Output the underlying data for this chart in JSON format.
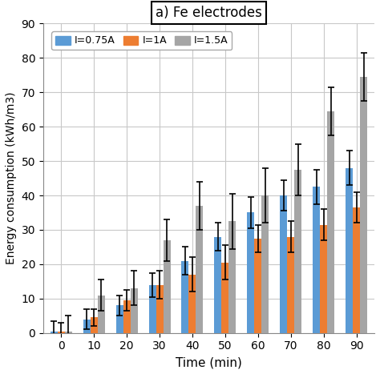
{
  "title": "a) Fe electrodes",
  "xlabel": "Time (min)",
  "ylabel": "Energy consumption (kWh/m3)",
  "x_tick_labels": [
    "0",
    "10",
    "20",
    "30",
    "40",
    "50",
    "60",
    "70",
    "80",
    "90"
  ],
  "ylim": [
    0,
    90
  ],
  "yticks": [
    0,
    10,
    20,
    30,
    40,
    50,
    60,
    70,
    80,
    90
  ],
  "series": {
    "I=0.75A": {
      "color": "#5B9BD5",
      "values": [
        0.5,
        4.0,
        8.0,
        14.0,
        21.0,
        28.0,
        35.0,
        40.0,
        42.5,
        48.0
      ],
      "errors": [
        3.0,
        3.0,
        3.0,
        3.5,
        4.0,
        4.0,
        4.5,
        4.5,
        5.0,
        5.0
      ]
    },
    "I=1A": {
      "color": "#ED7D31",
      "values": [
        0.5,
        4.5,
        9.5,
        14.0,
        17.0,
        20.5,
        27.5,
        28.0,
        31.5,
        36.5
      ],
      "errors": [
        2.5,
        2.5,
        3.0,
        4.0,
        5.0,
        5.0,
        4.0,
        4.5,
        4.5,
        4.5
      ]
    },
    "I=1.5A": {
      "color": "#A5A5A5",
      "values": [
        0.5,
        11.0,
        13.0,
        27.0,
        37.0,
        32.5,
        40.0,
        47.5,
        64.5,
        74.5
      ],
      "errors": [
        4.5,
        4.5,
        5.0,
        6.0,
        7.0,
        8.0,
        8.0,
        7.5,
        7.0,
        7.0
      ]
    }
  },
  "bar_width": 0.22,
  "background_color": "#FFFFFF",
  "grid_color": "#C8C8C8",
  "figsize": [
    4.74,
    4.67
  ],
  "dpi": 100
}
